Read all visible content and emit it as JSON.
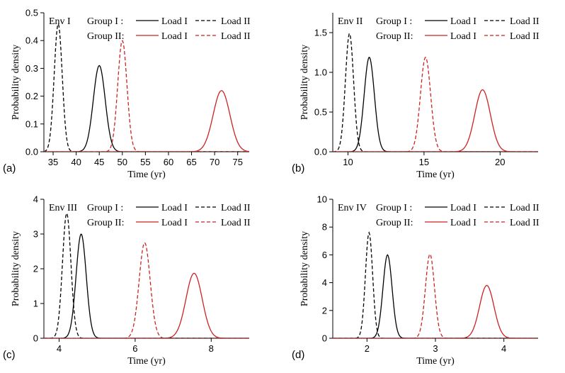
{
  "colors": {
    "group1": "#000000",
    "group2": "#cc2222"
  },
  "legend": {
    "group1_label": "Group I :",
    "group2_label": "Group II:",
    "load1_label": "Load I",
    "load2_label": "Load II"
  },
  "chart_data": [
    {
      "type": "line",
      "panel_label": "(a)",
      "env_label": "Env I",
      "xlabel": "Time (yr)",
      "ylabel": "Probability density",
      "xlim": [
        33,
        77.5
      ],
      "ylim": [
        0,
        0.5
      ],
      "xticks": [
        35,
        40,
        45,
        50,
        55,
        60,
        65,
        70,
        75
      ],
      "yticks": [
        0.0,
        0.1,
        0.2,
        0.3,
        0.4,
        0.5
      ],
      "ytick_labels": [
        "0.0",
        "0.1",
        "0.2",
        "0.3",
        "0.4",
        "0.5"
      ],
      "series": [
        {
          "name": "Group I Load I",
          "group": 1,
          "dash": false,
          "mean": 45.0,
          "peak": 0.31
        },
        {
          "name": "Group I Load II",
          "group": 1,
          "dash": true,
          "mean": 36.1,
          "peak": 0.46
        },
        {
          "name": "Group II Load I",
          "group": 2,
          "dash": false,
          "mean": 71.5,
          "peak": 0.22
        },
        {
          "name": "Group II Load II",
          "group": 2,
          "dash": true,
          "mean": 50.0,
          "peak": 0.4
        }
      ]
    },
    {
      "type": "line",
      "panel_label": "(b)",
      "env_label": "Env II",
      "xlabel": "Time (yr)",
      "ylabel": "Probability density",
      "xlim": [
        9,
        22.5
      ],
      "ylim": [
        0,
        1.75
      ],
      "xticks": [
        10,
        15,
        20
      ],
      "yticks": [
        0.0,
        0.5,
        1.0,
        1.5
      ],
      "ytick_labels": [
        "0.0",
        "0.5",
        "1.0",
        "1.5"
      ],
      "series": [
        {
          "name": "Group I Load I",
          "group": 1,
          "dash": false,
          "mean": 11.4,
          "peak": 1.19
        },
        {
          "name": "Group I Load II",
          "group": 1,
          "dash": true,
          "mean": 10.1,
          "peak": 1.49
        },
        {
          "name": "Group II Load I",
          "group": 2,
          "dash": false,
          "mean": 18.85,
          "peak": 0.78
        },
        {
          "name": "Group II Load II",
          "group": 2,
          "dash": true,
          "mean": 15.1,
          "peak": 1.19
        }
      ]
    },
    {
      "type": "line",
      "panel_label": "(c)",
      "env_label": "Env III",
      "xlabel": "Time (yr)",
      "ylabel": "Probability density",
      "xlim": [
        3.6,
        9.0
      ],
      "ylim": [
        0,
        4
      ],
      "xticks": [
        4,
        6,
        8
      ],
      "yticks": [
        0,
        1,
        2,
        3,
        4
      ],
      "ytick_labels": [
        "0",
        "1",
        "2",
        "3",
        "4"
      ],
      "series": [
        {
          "name": "Group I Load I",
          "group": 1,
          "dash": false,
          "mean": 4.58,
          "peak": 3.0
        },
        {
          "name": "Group I Load II",
          "group": 1,
          "dash": true,
          "mean": 4.2,
          "peak": 3.6
        },
        {
          "name": "Group II Load I",
          "group": 2,
          "dash": false,
          "mean": 7.55,
          "peak": 1.87
        },
        {
          "name": "Group II Load II",
          "group": 2,
          "dash": true,
          "mean": 6.25,
          "peak": 2.75
        }
      ]
    },
    {
      "type": "line",
      "panel_label": "(d)",
      "env_label": "Env IV",
      "xlabel": "Time (yr)",
      "ylabel": "Probability density",
      "xlim": [
        1.5,
        4.5
      ],
      "ylim": [
        0,
        10
      ],
      "xticks": [
        2,
        3,
        4
      ],
      "yticks": [
        0,
        2,
        4,
        6,
        8,
        10
      ],
      "ytick_labels": [
        "0",
        "2",
        "4",
        "6",
        "8",
        "10"
      ],
      "series": [
        {
          "name": "Group I Load I",
          "group": 1,
          "dash": false,
          "mean": 2.3,
          "peak": 6.0
        },
        {
          "name": "Group I Load II",
          "group": 1,
          "dash": true,
          "mean": 2.03,
          "peak": 7.6
        },
        {
          "name": "Group II Load I",
          "group": 2,
          "dash": false,
          "mean": 3.75,
          "peak": 3.8
        },
        {
          "name": "Group II Load II",
          "group": 2,
          "dash": true,
          "mean": 2.92,
          "peak": 6.05
        }
      ]
    }
  ]
}
